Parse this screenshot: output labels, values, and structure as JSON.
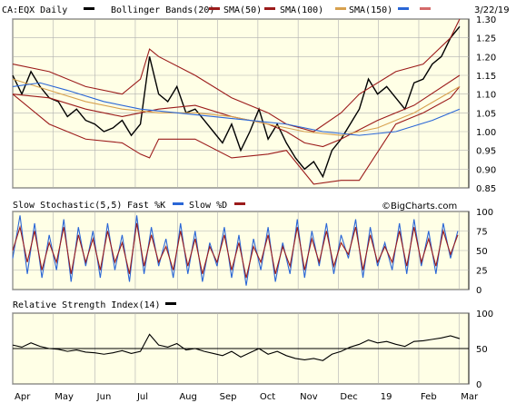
{
  "chart_data": [
    {
      "type": "ohlc",
      "panel": "price",
      "symbol_label": "CA:EQX Daily",
      "date_label": "3/22/19",
      "legend": [
        {
          "name": "CA:EQX Daily",
          "color": "#000000"
        },
        {
          "name": "Bollinger Bands(20)",
          "color": "#9b1b1b"
        },
        {
          "name": "SMA(50)",
          "color": "#9b1b1b"
        },
        {
          "name": "SMA(100)",
          "color": "#d7a14e"
        },
        {
          "name": "SMA(150)",
          "color": "#2a66d6"
        },
        {
          "name": "",
          "color": "#d46a6a"
        }
      ],
      "ylim": [
        0.85,
        1.3
      ],
      "y_ticks": [
        1.3,
        1.25,
        1.2,
        1.15,
        1.1,
        1.05,
        1.0,
        0.95,
        0.9,
        0.85
      ],
      "watermark": "©BigCharts.com",
      "series": [
        {
          "name": "Price",
          "x": [
            0,
            5,
            10,
            15,
            20,
            25,
            30,
            35,
            40,
            45,
            50,
            55,
            60,
            65,
            70,
            75,
            80,
            85,
            90,
            95,
            100,
            105,
            110,
            115,
            120,
            125,
            130,
            135,
            140,
            145,
            150,
            155,
            160,
            165,
            170,
            175,
            180,
            185,
            190,
            195,
            200,
            205,
            210,
            215,
            220,
            225,
            230,
            235,
            240,
            245
          ],
          "y": [
            1.15,
            1.1,
            1.16,
            1.12,
            1.09,
            1.08,
            1.04,
            1.06,
            1.03,
            1.02,
            1.0,
            1.01,
            1.03,
            0.99,
            1.02,
            1.2,
            1.1,
            1.08,
            1.12,
            1.05,
            1.06,
            1.03,
            1.0,
            0.97,
            1.02,
            0.95,
            1.0,
            1.06,
            0.98,
            1.02,
            0.97,
            0.93,
            0.9,
            0.92,
            0.88,
            0.95,
            0.98,
            1.02,
            1.06,
            1.14,
            1.1,
            1.12,
            1.09,
            1.06,
            1.13,
            1.14,
            1.18,
            1.2,
            1.25,
            1.28
          ]
        },
        {
          "name": "BB upper",
          "x": [
            0,
            20,
            40,
            60,
            70,
            75,
            80,
            100,
            120,
            140,
            150,
            165,
            180,
            190,
            210,
            225,
            240,
            245
          ],
          "y": [
            1.18,
            1.16,
            1.12,
            1.1,
            1.14,
            1.22,
            1.2,
            1.15,
            1.09,
            1.05,
            1.02,
            1.0,
            1.05,
            1.1,
            1.16,
            1.18,
            1.25,
            1.3
          ]
        },
        {
          "name": "BB lower",
          "x": [
            0,
            20,
            40,
            60,
            70,
            75,
            80,
            100,
            120,
            140,
            150,
            165,
            180,
            190,
            210,
            225,
            240,
            245
          ],
          "y": [
            1.1,
            1.02,
            0.98,
            0.97,
            0.94,
            0.93,
            0.98,
            0.98,
            0.93,
            0.94,
            0.95,
            0.86,
            0.87,
            0.87,
            1.02,
            1.05,
            1.09,
            1.12
          ]
        },
        {
          "name": "SMA(50)",
          "x": [
            0,
            20,
            40,
            60,
            80,
            100,
            120,
            140,
            150,
            160,
            170,
            180,
            200,
            220,
            245
          ],
          "y": [
            1.1,
            1.09,
            1.06,
            1.04,
            1.06,
            1.07,
            1.04,
            1.02,
            1.0,
            0.97,
            0.96,
            0.98,
            1.03,
            1.07,
            1.15
          ]
        },
        {
          "name": "SMA(100)",
          "x": [
            0,
            20,
            40,
            60,
            80,
            100,
            120,
            140,
            160,
            180,
            200,
            220,
            245
          ],
          "y": [
            1.14,
            1.11,
            1.08,
            1.06,
            1.05,
            1.05,
            1.04,
            1.02,
            1.0,
            0.99,
            1.01,
            1.05,
            1.12
          ]
        },
        {
          "name": "SMA(150)",
          "x": [
            0,
            15,
            30,
            50,
            70,
            90,
            110,
            130,
            150,
            170,
            190,
            210,
            230,
            245
          ],
          "y": [
            1.12,
            1.13,
            1.11,
            1.08,
            1.06,
            1.05,
            1.04,
            1.03,
            1.02,
            1.0,
            0.99,
            1.0,
            1.03,
            1.06
          ]
        }
      ]
    },
    {
      "type": "line",
      "panel": "stochastic",
      "title": "Slow Stochastic(5,5)",
      "legend": [
        {
          "name": "Fast %K",
          "color": "#2a66d6"
        },
        {
          "name": "Slow %D",
          "color": "#9b1b1b"
        }
      ],
      "ylim": [
        0,
        100
      ],
      "y_ticks": [
        100,
        75,
        50,
        25,
        0
      ],
      "series": [
        {
          "name": "Fast %K",
          "x": [
            0,
            4,
            8,
            12,
            16,
            20,
            24,
            28,
            32,
            36,
            40,
            44,
            48,
            52,
            56,
            60,
            64,
            68,
            72,
            76,
            80,
            84,
            88,
            92,
            96,
            100,
            104,
            108,
            112,
            116,
            120,
            124,
            128,
            132,
            136,
            140,
            144,
            148,
            152,
            156,
            160,
            164,
            168,
            172,
            176,
            180,
            184,
            188,
            192,
            196,
            200,
            204,
            208,
            212,
            216,
            220,
            224,
            228,
            232,
            236,
            240,
            244
          ],
          "y": [
            40,
            95,
            20,
            85,
            15,
            70,
            25,
            90,
            10,
            80,
            30,
            75,
            15,
            85,
            25,
            70,
            10,
            95,
            20,
            80,
            30,
            65,
            15,
            85,
            20,
            75,
            10,
            60,
            30,
            80,
            15,
            70,
            5,
            65,
            25,
            80,
            10,
            60,
            20,
            90,
            15,
            75,
            30,
            85,
            20,
            70,
            40,
            90,
            15,
            80,
            30,
            60,
            25,
            85,
            20,
            90,
            30,
            75,
            20,
            85,
            40,
            75
          ]
        },
        {
          "name": "Slow %D",
          "x": [
            0,
            4,
            8,
            12,
            16,
            20,
            24,
            28,
            32,
            36,
            40,
            44,
            48,
            52,
            56,
            60,
            64,
            68,
            72,
            76,
            80,
            84,
            88,
            92,
            96,
            100,
            104,
            108,
            112,
            116,
            120,
            124,
            128,
            132,
            136,
            140,
            144,
            148,
            152,
            156,
            160,
            164,
            168,
            172,
            176,
            180,
            184,
            188,
            192,
            196,
            200,
            204,
            208,
            212,
            216,
            220,
            224,
            228,
            232,
            236,
            240,
            244
          ],
          "y": [
            50,
            80,
            35,
            75,
            25,
            60,
            35,
            80,
            20,
            70,
            35,
            65,
            25,
            75,
            35,
            60,
            20,
            85,
            30,
            70,
            35,
            55,
            25,
            75,
            30,
            65,
            20,
            55,
            35,
            70,
            25,
            60,
            15,
            55,
            35,
            70,
            20,
            55,
            30,
            80,
            25,
            65,
            35,
            75,
            30,
            60,
            45,
            80,
            25,
            70,
            35,
            55,
            35,
            75,
            30,
            80,
            35,
            65,
            30,
            75,
            45,
            70
          ]
        }
      ]
    },
    {
      "type": "line",
      "panel": "rsi",
      "title": "Relative Strength Index(14)",
      "legend": [
        {
          "name": "Relative Strength Index(14)",
          "color": "#000000"
        }
      ],
      "ylim": [
        0,
        100
      ],
      "y_ticks": [
        100,
        50,
        0
      ],
      "series": [
        {
          "name": "RSI",
          "x": [
            0,
            5,
            10,
            15,
            20,
            25,
            30,
            35,
            40,
            45,
            50,
            55,
            60,
            65,
            70,
            75,
            80,
            85,
            90,
            95,
            100,
            105,
            110,
            115,
            120,
            125,
            130,
            135,
            140,
            145,
            150,
            155,
            160,
            165,
            170,
            175,
            180,
            185,
            190,
            195,
            200,
            205,
            210,
            215,
            220,
            225,
            230,
            235,
            240,
            245
          ],
          "y": [
            55,
            52,
            58,
            53,
            50,
            49,
            46,
            48,
            45,
            44,
            42,
            44,
            47,
            43,
            46,
            70,
            55,
            52,
            57,
            48,
            50,
            46,
            43,
            40,
            46,
            38,
            44,
            50,
            42,
            46,
            40,
            36,
            34,
            36,
            33,
            42,
            46,
            52,
            56,
            62,
            58,
            60,
            56,
            53,
            60,
            61,
            63,
            65,
            68,
            64
          ]
        }
      ]
    }
  ],
  "x_axis": {
    "labels": [
      "Apr",
      "May",
      "Jun",
      "Jul",
      "Aug",
      "Sep",
      "Oct",
      "Nov",
      "Dec",
      "19",
      "Feb",
      "Mar"
    ],
    "x": [
      0,
      21,
      43,
      64,
      86,
      107,
      128,
      149,
      170,
      191,
      212,
      233
    ]
  },
  "colors": {
    "panel_bg": "#ffffe6",
    "grid": "#b0b0b0",
    "price": "#000000"
  }
}
